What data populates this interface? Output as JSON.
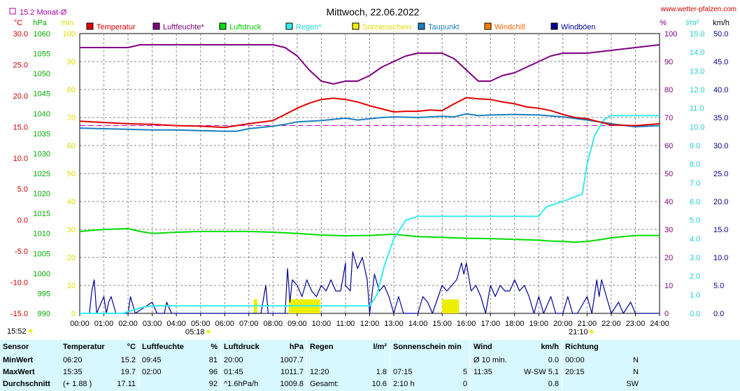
{
  "header": {
    "title": "Mittwoch, 22.06.2022",
    "site": "www.wetter-pfalzen.com",
    "monthly_avg": "15.2 Monat-Ø",
    "time_now": "15:52",
    "sunrise": "05:18",
    "sunset": "21:10"
  },
  "colors": {
    "temperatur": "#e00000",
    "luftfeuchte": "#800080",
    "luftdruck": "#00dd00",
    "regen": "#33eeee",
    "sonnenschein": "#eeee00",
    "taupunkt": "#1a7fbf",
    "windchill": "#ff8000",
    "windboeen": "#000090"
  },
  "chart_data": {
    "type": "line",
    "x_range": [
      0,
      24
    ],
    "x_ticks": [
      "00:00",
      "01:00",
      "02:00",
      "03:00",
      "04:00",
      "05:00",
      "06:00",
      "07:00",
      "08:00",
      "09:00",
      "10:00",
      "11:00",
      "12:00",
      "13:00",
      "14:00",
      "15:00",
      "16:00",
      "17:00",
      "18:00",
      "19:00",
      "20:00",
      "21:00",
      "22:00",
      "23:00",
      "24:00"
    ],
    "legend": [
      "Temperatur",
      "Luftfeuchte*",
      "Luftdruck",
      "Regen*",
      "Sonnenschein",
      "Taupunkt",
      "Windchill",
      "Windböen"
    ],
    "axes": {
      "temp": {
        "unit": "°C",
        "min": -15,
        "max": 30,
        "ticks": [
          "30.0",
          "25.0",
          "20.0",
          "15.0",
          "10.0",
          "5.0",
          "0.0",
          "-5.0",
          "-10.0",
          "-15.0"
        ]
      },
      "pressure": {
        "unit": "hPa",
        "min": 990,
        "max": 1060,
        "ticks": [
          "1060",
          "1055",
          "1050",
          "1045",
          "1040",
          "1035",
          "1030",
          "1025",
          "1020",
          "1015",
          "1010",
          "1005",
          "1000",
          "995",
          "990"
        ]
      },
      "percent_left": {
        "unit": "min",
        "min": 0,
        "max": 100,
        "ticks": [
          "100",
          "90",
          "80",
          "70",
          "60",
          "50",
          "40",
          "30",
          "20",
          "10",
          "0"
        ]
      },
      "percent_right": {
        "unit": "%",
        "min": 0,
        "max": 100,
        "ticks": [
          "100",
          "90",
          "80",
          "70",
          "60",
          "50",
          "40",
          "30",
          "20",
          "10",
          "0"
        ]
      },
      "rain": {
        "unit": "l/m²",
        "min": 0,
        "max": 15,
        "ticks": [
          "15.0",
          "14.0",
          "13.0",
          "12.0",
          "11.0",
          "10.0",
          "9.0",
          "8.0",
          "7.0",
          "6.0",
          "5.0",
          "4.0",
          "3.0",
          "2.0",
          "1.0",
          "0.0"
        ]
      },
      "wind": {
        "unit": "km/h",
        "min": 0,
        "max": 50,
        "ticks": [
          "50.0",
          "45.0",
          "40.0",
          "35.0",
          "30.0",
          "25.0",
          "20.0",
          "15.0",
          "10.0",
          "5.0",
          "0.0"
        ]
      }
    },
    "monthly_avg_temp": 15.2,
    "series": [
      {
        "name": "Temperatur",
        "axis": "temp",
        "points": [
          [
            0,
            15.9
          ],
          [
            1,
            15.7
          ],
          [
            2,
            15.5
          ],
          [
            3,
            15.4
          ],
          [
            4,
            15.2
          ],
          [
            5,
            15.1
          ],
          [
            6,
            14.9
          ],
          [
            7,
            15.5
          ],
          [
            8,
            16.0
          ],
          [
            8.5,
            17.0
          ],
          [
            9,
            18.0
          ],
          [
            9.5,
            18.8
          ],
          [
            10,
            19.4
          ],
          [
            10.5,
            19.6
          ],
          [
            11,
            19.4
          ],
          [
            11.5,
            19.0
          ],
          [
            12,
            18.4
          ],
          [
            12.5,
            17.9
          ],
          [
            13,
            17.4
          ],
          [
            13.5,
            17.5
          ],
          [
            14,
            17.5
          ],
          [
            14.5,
            17.7
          ],
          [
            15,
            17.6
          ],
          [
            15.5,
            18.7
          ],
          [
            16,
            19.7
          ],
          [
            16.5,
            19.5
          ],
          [
            17,
            19.4
          ],
          [
            17.5,
            19.0
          ],
          [
            18,
            18.7
          ],
          [
            18.5,
            18.2
          ],
          [
            19,
            18.0
          ],
          [
            19.5,
            17.6
          ],
          [
            20,
            17.0
          ],
          [
            20.5,
            16.5
          ],
          [
            21,
            16.3
          ],
          [
            21.5,
            15.8
          ],
          [
            22,
            15.3
          ],
          [
            23,
            15.2
          ],
          [
            24,
            15.5
          ]
        ]
      },
      {
        "name": "Luftfeuchte*",
        "axis": "percent_right",
        "points": [
          [
            0,
            95
          ],
          [
            1,
            95
          ],
          [
            2,
            95
          ],
          [
            2.5,
            96
          ],
          [
            4,
            96
          ],
          [
            6,
            96
          ],
          [
            7,
            96
          ],
          [
            8,
            96
          ],
          [
            8.5,
            95
          ],
          [
            9,
            92
          ],
          [
            9.5,
            87
          ],
          [
            10,
            83
          ],
          [
            10.5,
            82
          ],
          [
            11,
            83
          ],
          [
            11.5,
            83
          ],
          [
            12,
            85
          ],
          [
            12.5,
            88
          ],
          [
            13,
            90
          ],
          [
            13.5,
            92
          ],
          [
            14,
            93
          ],
          [
            15,
            93
          ],
          [
            15.5,
            91
          ],
          [
            16,
            87
          ],
          [
            16.5,
            83
          ],
          [
            17,
            83
          ],
          [
            17.5,
            85
          ],
          [
            18,
            86
          ],
          [
            18.5,
            88
          ],
          [
            19,
            90
          ],
          [
            19.5,
            92
          ],
          [
            20,
            93
          ],
          [
            21,
            93
          ],
          [
            22,
            94
          ],
          [
            23,
            95
          ],
          [
            24,
            96
          ]
        ]
      },
      {
        "name": "Luftdruck",
        "axis": "pressure",
        "points": [
          [
            0,
            1010.5
          ],
          [
            1,
            1011.0
          ],
          [
            2,
            1011.2
          ],
          [
            2.5,
            1010.5
          ],
          [
            3,
            1010.0
          ],
          [
            4,
            1010.3
          ],
          [
            5,
            1010.5
          ],
          [
            6,
            1010.5
          ],
          [
            7,
            1010.5
          ],
          [
            8,
            1010.3
          ],
          [
            9,
            1010.0
          ],
          [
            10,
            1009.6
          ],
          [
            11,
            1009.4
          ],
          [
            12,
            1009.5
          ],
          [
            13,
            1009.8
          ],
          [
            13.5,
            1009.5
          ],
          [
            14,
            1009.2
          ],
          [
            15,
            1009.0
          ],
          [
            16,
            1008.8
          ],
          [
            17,
            1008.7
          ],
          [
            18,
            1008.5
          ],
          [
            19,
            1008.3
          ],
          [
            19.5,
            1008.1
          ],
          [
            20,
            1008.0
          ],
          [
            20.5,
            1007.8
          ],
          [
            21,
            1008.0
          ],
          [
            21.5,
            1008.4
          ],
          [
            22,
            1008.9
          ],
          [
            23,
            1009.5
          ],
          [
            24,
            1009.5
          ]
        ]
      },
      {
        "name": "Regen*",
        "axis": "rain",
        "points": [
          [
            0,
            0
          ],
          [
            1.8,
            0
          ],
          [
            2.5,
            0.3
          ],
          [
            3,
            0.4
          ],
          [
            12,
            0.4
          ],
          [
            12.3,
            1.0
          ],
          [
            12.6,
            2.5
          ],
          [
            13,
            4.0
          ],
          [
            13.5,
            5.0
          ],
          [
            14,
            5.2
          ],
          [
            19,
            5.2
          ],
          [
            19.3,
            5.7
          ],
          [
            20,
            6.0
          ],
          [
            20.8,
            6.4
          ],
          [
            21,
            8.0
          ],
          [
            21.3,
            9.5
          ],
          [
            21.7,
            10.4
          ],
          [
            22,
            10.6
          ],
          [
            24,
            10.6
          ]
        ]
      },
      {
        "name": "Taupunkt",
        "axis": "temp",
        "points": [
          [
            0,
            14.8
          ],
          [
            1,
            14.7
          ],
          [
            2,
            14.6
          ],
          [
            3,
            14.5
          ],
          [
            4,
            14.5
          ],
          [
            5,
            14.4
          ],
          [
            6,
            14.3
          ],
          [
            6.5,
            14.3
          ],
          [
            7,
            14.7
          ],
          [
            8,
            15.1
          ],
          [
            8.5,
            15.4
          ],
          [
            9,
            15.8
          ],
          [
            10,
            16.0
          ],
          [
            11,
            16.4
          ],
          [
            11.5,
            16.1
          ],
          [
            12,
            16.3
          ],
          [
            12.5,
            16.5
          ],
          [
            13,
            16.6
          ],
          [
            14,
            16.5
          ],
          [
            15,
            16.7
          ],
          [
            15.5,
            16.6
          ],
          [
            16,
            17.1
          ],
          [
            16.5,
            16.8
          ],
          [
            17,
            16.9
          ],
          [
            18,
            17.0
          ],
          [
            19,
            16.9
          ],
          [
            20,
            16.6
          ],
          [
            21,
            16.1
          ],
          [
            22,
            15.5
          ],
          [
            23,
            15.0
          ],
          [
            24,
            15.2
          ]
        ]
      },
      {
        "name": "Windböen",
        "axis": "wind",
        "points": [
          [
            0,
            0
          ],
          [
            0.4,
            0
          ],
          [
            0.5,
            4
          ],
          [
            0.6,
            6
          ],
          [
            0.7,
            0
          ],
          [
            1,
            3
          ],
          [
            1.1,
            0
          ],
          [
            1.2,
            2
          ],
          [
            1.3,
            3
          ],
          [
            1.5,
            0
          ],
          [
            2,
            0
          ],
          [
            2.1,
            3
          ],
          [
            2.3,
            0
          ],
          [
            3,
            2
          ],
          [
            3.2,
            0
          ],
          [
            3.5,
            0
          ],
          [
            3.6,
            2
          ],
          [
            3.8,
            0
          ],
          [
            7.5,
            0
          ],
          [
            7.7,
            5
          ],
          [
            7.8,
            0
          ],
          [
            8.5,
            0
          ],
          [
            8.6,
            8
          ],
          [
            8.7,
            2
          ],
          [
            8.8,
            6
          ],
          [
            9,
            5
          ],
          [
            9.2,
            3
          ],
          [
            9.4,
            6
          ],
          [
            9.6,
            4
          ],
          [
            9.8,
            3
          ],
          [
            10,
            5
          ],
          [
            10.2,
            4
          ],
          [
            10.4,
            6
          ],
          [
            10.6,
            4
          ],
          [
            10.8,
            4
          ],
          [
            11,
            9
          ],
          [
            11,
            5
          ],
          [
            11.2,
            4
          ],
          [
            11.3,
            11
          ],
          [
            11.5,
            8
          ],
          [
            11.7,
            10
          ],
          [
            11.9,
            6
          ],
          [
            12,
            0
          ],
          [
            12.2,
            7
          ],
          [
            12.4,
            4
          ],
          [
            12.6,
            5
          ],
          [
            12.8,
            3
          ],
          [
            13,
            0
          ],
          [
            13.2,
            3
          ],
          [
            13.4,
            0
          ],
          [
            14,
            0
          ],
          [
            14.2,
            3
          ],
          [
            14.4,
            2
          ],
          [
            14.6,
            0
          ],
          [
            15,
            5
          ],
          [
            15.2,
            4
          ],
          [
            15.4,
            5
          ],
          [
            15.6,
            6
          ],
          [
            15.8,
            9
          ],
          [
            15.9,
            7
          ],
          [
            16,
            9
          ],
          [
            16.2,
            4
          ],
          [
            16.4,
            5
          ],
          [
            16.6,
            3
          ],
          [
            16.8,
            0
          ],
          [
            17,
            5
          ],
          [
            17.2,
            3
          ],
          [
            17.4,
            5
          ],
          [
            17.6,
            4
          ],
          [
            17.8,
            4
          ],
          [
            18,
            6
          ],
          [
            18.2,
            4
          ],
          [
            18.4,
            5
          ],
          [
            18.6,
            3
          ],
          [
            18.8,
            0
          ],
          [
            19,
            3
          ],
          [
            19.2,
            0
          ],
          [
            19.5,
            3
          ],
          [
            19.7,
            0
          ],
          [
            20,
            0
          ],
          [
            20.2,
            3
          ],
          [
            20.4,
            0
          ],
          [
            20.6,
            0
          ],
          [
            21,
            3
          ],
          [
            21.2,
            0
          ],
          [
            21.4,
            6
          ],
          [
            21.5,
            3
          ],
          [
            21.6,
            6
          ],
          [
            21.8,
            3
          ],
          [
            22,
            0
          ],
          [
            22.3,
            2
          ],
          [
            22.5,
            0
          ],
          [
            22.8,
            2
          ],
          [
            23,
            0
          ],
          [
            24,
            0
          ]
        ]
      }
    ],
    "sunshine_bars": [
      [
        7.2,
        7.35
      ],
      [
        8.65,
        9.95
      ],
      [
        15.0,
        15.7
      ]
    ],
    "sunshine_pct": 5
  },
  "stats": {
    "header": [
      "Sensor",
      "Temperatur",
      "°C",
      "Luftfeuchte",
      "%",
      "Luftdruck",
      "hPa",
      "Regen",
      "l/m²",
      "Sonnenschein min",
      "Wind",
      "km/h",
      "Richtung"
    ],
    "rows": [
      [
        "MinWert",
        "06:20",
        "15.2",
        "09:45",
        "81",
        "20:00",
        "1007.7",
        "",
        "",
        "",
        "",
        "Ø 10 min.",
        "0.0",
        "00:00",
        "N"
      ],
      [
        "MaxWert",
        "15:35",
        "19.7",
        "02:00",
        "96",
        "01:45",
        "1011.7",
        "12:20",
        "1.8",
        "07:15",
        "5",
        "11:35",
        "W-SW 5.1",
        "20:15",
        "N"
      ],
      [
        "Durchschnitt",
        "(+ 1.88 )",
        "17.11",
        "",
        "92",
        "^1.6hPa/h",
        "1009.8",
        "Gesamt:",
        "10.6",
        "2:10 h",
        "0",
        "",
        "0.8",
        "",
        "SW"
      ]
    ]
  }
}
